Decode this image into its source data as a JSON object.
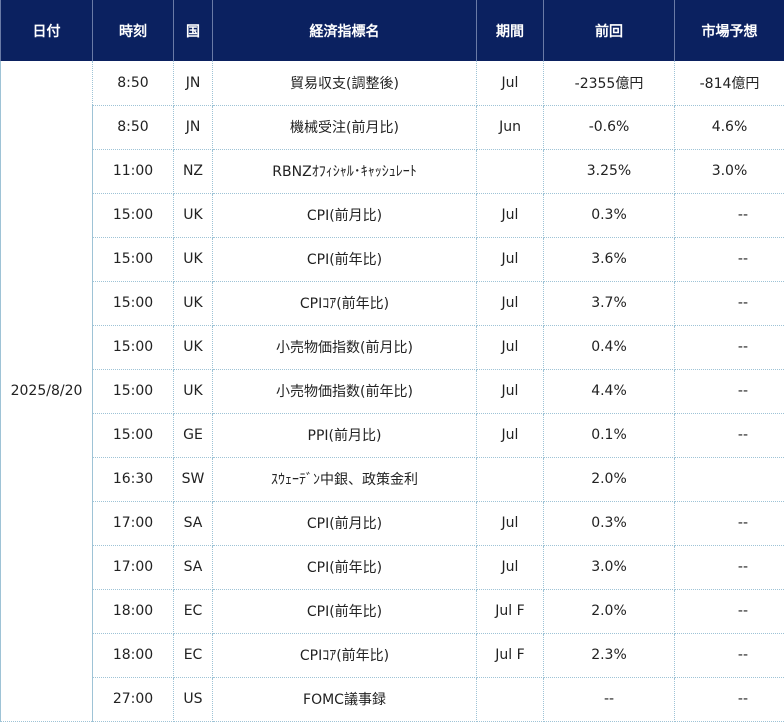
{
  "headers": {
    "date": "日付",
    "time": "時刻",
    "country": "国",
    "indicator": "経済指標名",
    "period": "期間",
    "previous": "前回",
    "forecast": "市場予想"
  },
  "date": "2025/8/20",
  "rows": [
    {
      "time": "8:50",
      "country": "JN",
      "indicator": "貿易収支(調整後)",
      "period": "Jul",
      "previous": "-2355億円",
      "forecast": "-814億円"
    },
    {
      "time": "8:50",
      "country": "JN",
      "indicator": "機械受注(前月比)",
      "period": "Jun",
      "previous": "-0.6%",
      "forecast": "4.6%"
    },
    {
      "time": "11:00",
      "country": "NZ",
      "indicator": "RBNZｵﾌｨｼｬﾙ･ｷｬｯｼｭﾚｰﾄ",
      "period": "",
      "previous": "3.25%",
      "forecast": "3.0%"
    },
    {
      "time": "15:00",
      "country": "UK",
      "indicator": "CPI(前月比)",
      "period": "Jul",
      "previous": "0.3%",
      "forecast": "--"
    },
    {
      "time": "15:00",
      "country": "UK",
      "indicator": "CPI(前年比)",
      "period": "Jul",
      "previous": "3.6%",
      "forecast": "--"
    },
    {
      "time": "15:00",
      "country": "UK",
      "indicator": "CPIｺｱ(前年比)",
      "period": "Jul",
      "previous": "3.7%",
      "forecast": "--"
    },
    {
      "time": "15:00",
      "country": "UK",
      "indicator": "小売物価指数(前月比)",
      "period": "Jul",
      "previous": "0.4%",
      "forecast": "--"
    },
    {
      "time": "15:00",
      "country": "UK",
      "indicator": "小売物価指数(前年比)",
      "period": "Jul",
      "previous": "4.4%",
      "forecast": "--"
    },
    {
      "time": "15:00",
      "country": "GE",
      "indicator": "PPI(前月比)",
      "period": "Jul",
      "previous": "0.1%",
      "forecast": "--"
    },
    {
      "time": "16:30",
      "country": "SW",
      "indicator": "ｽｳｪｰﾃﾞﾝ中銀、政策金利",
      "period": "",
      "previous": "2.0%",
      "forecast": ""
    },
    {
      "time": "17:00",
      "country": "SA",
      "indicator": "CPI(前月比)",
      "period": "Jul",
      "previous": "0.3%",
      "forecast": "--"
    },
    {
      "time": "17:00",
      "country": "SA",
      "indicator": "CPI(前年比)",
      "period": "Jul",
      "previous": "3.0%",
      "forecast": "--"
    },
    {
      "time": "18:00",
      "country": "EC",
      "indicator": "CPI(前年比)",
      "period": "Jul F",
      "previous": "2.0%",
      "forecast": "--"
    },
    {
      "time": "18:00",
      "country": "EC",
      "indicator": "CPIｺｱ(前年比)",
      "period": "Jul F",
      "previous": "2.3%",
      "forecast": "--"
    },
    {
      "time": "27:00",
      "country": "US",
      "indicator": "FOMC議事録",
      "period": "",
      "previous": "--",
      "forecast": "--"
    }
  ]
}
